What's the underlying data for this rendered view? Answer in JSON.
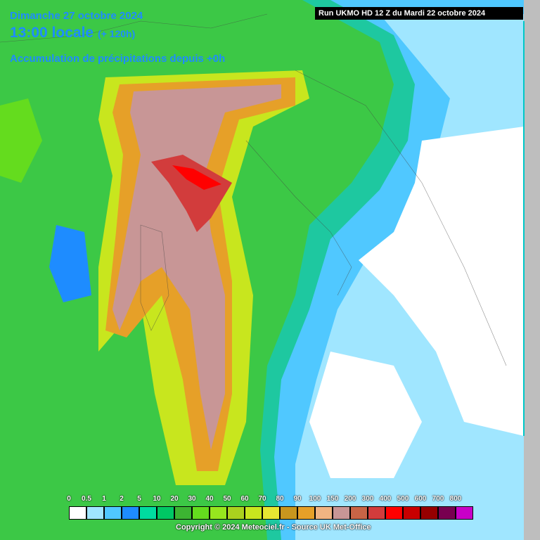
{
  "header": {
    "date": "Dimanche 27 octobre 2024",
    "time": "13:00 locale",
    "lead": "(+ 120h)",
    "description": "Accumulation de précipitations depuis +0h",
    "run": "Run UKMO HD 12 Z du Mardi 22 octobre 2024"
  },
  "legend": {
    "items": [
      {
        "label": "0",
        "color": "#ffffff"
      },
      {
        "label": "0.5",
        "color": "#a0e6ff"
      },
      {
        "label": "1",
        "color": "#50c8ff"
      },
      {
        "label": "2",
        "color": "#1e8cff"
      },
      {
        "label": "5",
        "color": "#00dca0"
      },
      {
        "label": "10",
        "color": "#00c864"
      },
      {
        "label": "20",
        "color": "#3cb432"
      },
      {
        "label": "30",
        "color": "#64dc1e"
      },
      {
        "label": "40",
        "color": "#96e61e"
      },
      {
        "label": "50",
        "color": "#aad21e"
      },
      {
        "label": "60",
        "color": "#c8e61e"
      },
      {
        "label": "70",
        "color": "#e6e632"
      },
      {
        "label": "80",
        "color": "#c8961e"
      },
      {
        "label": "90",
        "color": "#e6a028"
      },
      {
        "label": "100",
        "color": "#f0b482"
      },
      {
        "label": "150",
        "color": "#c89696"
      },
      {
        "label": "200",
        "color": "#c86446"
      },
      {
        "label": "300",
        "color": "#d23c3c"
      },
      {
        "label": "400",
        "color": "#ff0000"
      },
      {
        "label": "500",
        "color": "#c80000"
      },
      {
        "label": "600",
        "color": "#960000"
      },
      {
        "label": "700",
        "color": "#780050"
      },
      {
        "label": "800",
        "color": "#c800c8"
      }
    ]
  },
  "footer": {
    "copyright": "Copyright © 2024 Meteociel.fr - Source UK Met-Office"
  }
}
